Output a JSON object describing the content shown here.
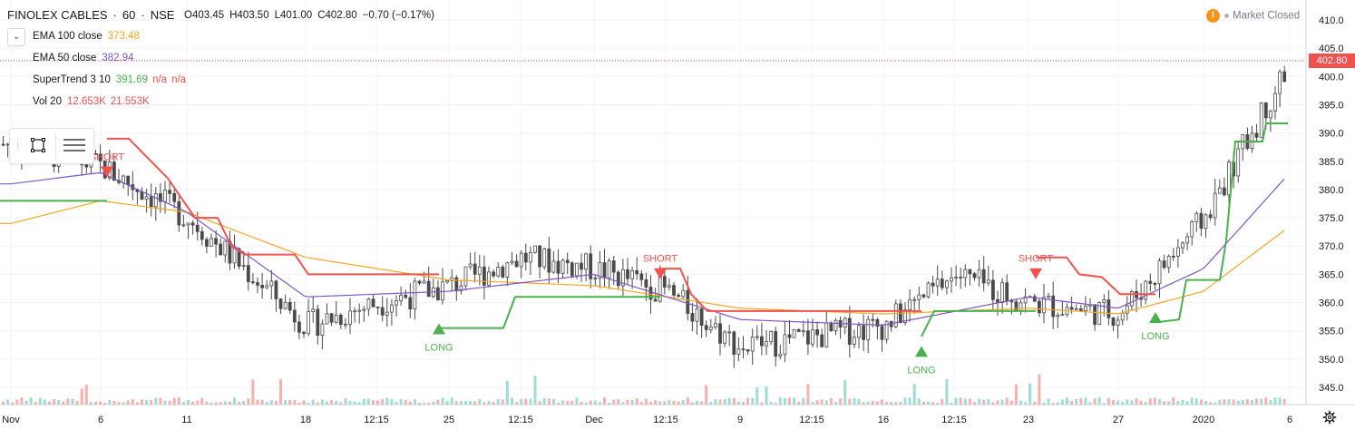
{
  "header": {
    "symbol": "FINOLEX CABLES",
    "sep1": "·",
    "interval": "60",
    "sep2": "·",
    "exchange": "NSE",
    "open": "O403.45",
    "high": "H403.50",
    "low": "L401.00",
    "close": "C402.80",
    "change": "−0.70 (−0.17%)"
  },
  "indicators": [
    {
      "name": "EMA 100 close",
      "values": [
        "373.48"
      ],
      "color": "#f5a623"
    },
    {
      "name": "EMA 50 close",
      "values": [
        "382.94"
      ],
      "color": "#7e57c2"
    },
    {
      "name": "SuperTrend 3 10",
      "values": [
        "391.69"
      ],
      "extra": [
        "n/a",
        "n/a"
      ],
      "color": "#4caf50",
      "extra_color": "#ef5350"
    },
    {
      "name": "Vol 20",
      "values": [
        "12.653K",
        "21.553K"
      ],
      "color": "#ef5350"
    }
  ],
  "market_status": {
    "warn_icon": "!",
    "label": "Market Closed"
  },
  "last_price_label": "402.80",
  "icons": {
    "collapse": "chevron-down-icon",
    "rect_tool": "rectangle-icon",
    "list_tool": "lines-icon",
    "settings": "gear-icon"
  },
  "colors": {
    "up": "#26a69a",
    "down": "#ef5350",
    "ema100": "#f5a623",
    "ema50": "#7e57c2",
    "st_green": "#4caf50",
    "st_red": "#ef5350",
    "grid": "#f0f3fa"
  },
  "chart_data": {
    "type": "candlestick",
    "y_axis": {
      "ticks": [
        345,
        350,
        355,
        360,
        365,
        370,
        375,
        380,
        385,
        390,
        395,
        400,
        405,
        410
      ],
      "range": [
        343,
        412
      ]
    },
    "x_axis": {
      "tick_labels": [
        "Nov",
        "6",
        "11",
        "18",
        "12:15",
        "25",
        "12:15",
        "Dec",
        "12:15",
        "9",
        "12:15",
        "16",
        "12:15",
        "23",
        "27",
        "2020",
        "6"
      ]
    },
    "price_line": 402.8,
    "signals": [
      {
        "label": "SHORT",
        "type": "short",
        "x_tick": "6",
        "price": 386
      },
      {
        "label": "LONG",
        "type": "long",
        "x_tick": "25",
        "price": 356
      },
      {
        "label": "SHORT",
        "type": "short",
        "x_tick": "12:15",
        "price": 368
      },
      {
        "label": "LONG",
        "type": "long",
        "x_tick": "16",
        "price": 352
      },
      {
        "label": "SHORT",
        "type": "short",
        "x_tick": "23",
        "price": 368
      },
      {
        "label": "LONG",
        "type": "long",
        "x_tick": "27",
        "price": 358
      }
    ],
    "close_path_anchors": [
      {
        "x_tick": "Nov",
        "price": 388
      },
      {
        "x_tick": "6",
        "price": 384
      },
      {
        "x_tick": "11",
        "price": 375
      },
      {
        "x_tick": "18",
        "price": 356
      },
      {
        "x_tick": "12:15",
        "price": 360
      },
      {
        "x_tick": "25",
        "price": 363
      },
      {
        "x_tick": "12:15",
        "price": 368
      },
      {
        "x_tick": "Dec",
        "price": 366
      },
      {
        "x_tick": "12:15",
        "price": 362
      },
      {
        "x_tick": "9",
        "price": 352
      },
      {
        "x_tick": "12:15",
        "price": 354
      },
      {
        "x_tick": "16",
        "price": 356
      },
      {
        "x_tick": "12:15",
        "price": 365
      },
      {
        "x_tick": "23",
        "price": 360
      },
      {
        "x_tick": "27",
        "price": 358
      },
      {
        "x_tick": "2020",
        "price": 375
      },
      {
        "x_tick": "6",
        "price": 402.8
      }
    ],
    "ema100": [
      {
        "x_tick": "Nov",
        "price": 374
      },
      {
        "x_tick": "6",
        "price": 378
      },
      {
        "x_tick": "11",
        "price": 376
      },
      {
        "x_tick": "18",
        "price": 368
      },
      {
        "x_tick": "25",
        "price": 364
      },
      {
        "x_tick": "Dec",
        "price": 363
      },
      {
        "x_tick": "9",
        "price": 359
      },
      {
        "x_tick": "16",
        "price": 358
      },
      {
        "x_tick": "23",
        "price": 359
      },
      {
        "x_tick": "27",
        "price": 358
      },
      {
        "x_tick": "2020",
        "price": 362
      },
      {
        "x_tick": "6",
        "price": 373.48
      }
    ],
    "ema50": [
      {
        "x_tick": "Nov",
        "price": 381
      },
      {
        "x_tick": "6",
        "price": 383
      },
      {
        "x_tick": "11",
        "price": 376
      },
      {
        "x_tick": "18",
        "price": 361
      },
      {
        "x_tick": "25",
        "price": 362
      },
      {
        "x_tick": "Dec",
        "price": 365
      },
      {
        "x_tick": "9",
        "price": 357
      },
      {
        "x_tick": "16",
        "price": 356
      },
      {
        "x_tick": "23",
        "price": 361
      },
      {
        "x_tick": "27",
        "price": 359
      },
      {
        "x_tick": "2020",
        "price": 366
      },
      {
        "x_tick": "6",
        "price": 382.94
      }
    ],
    "volume_note": "volume histogram along bottom, up bars teal, down bars red"
  }
}
